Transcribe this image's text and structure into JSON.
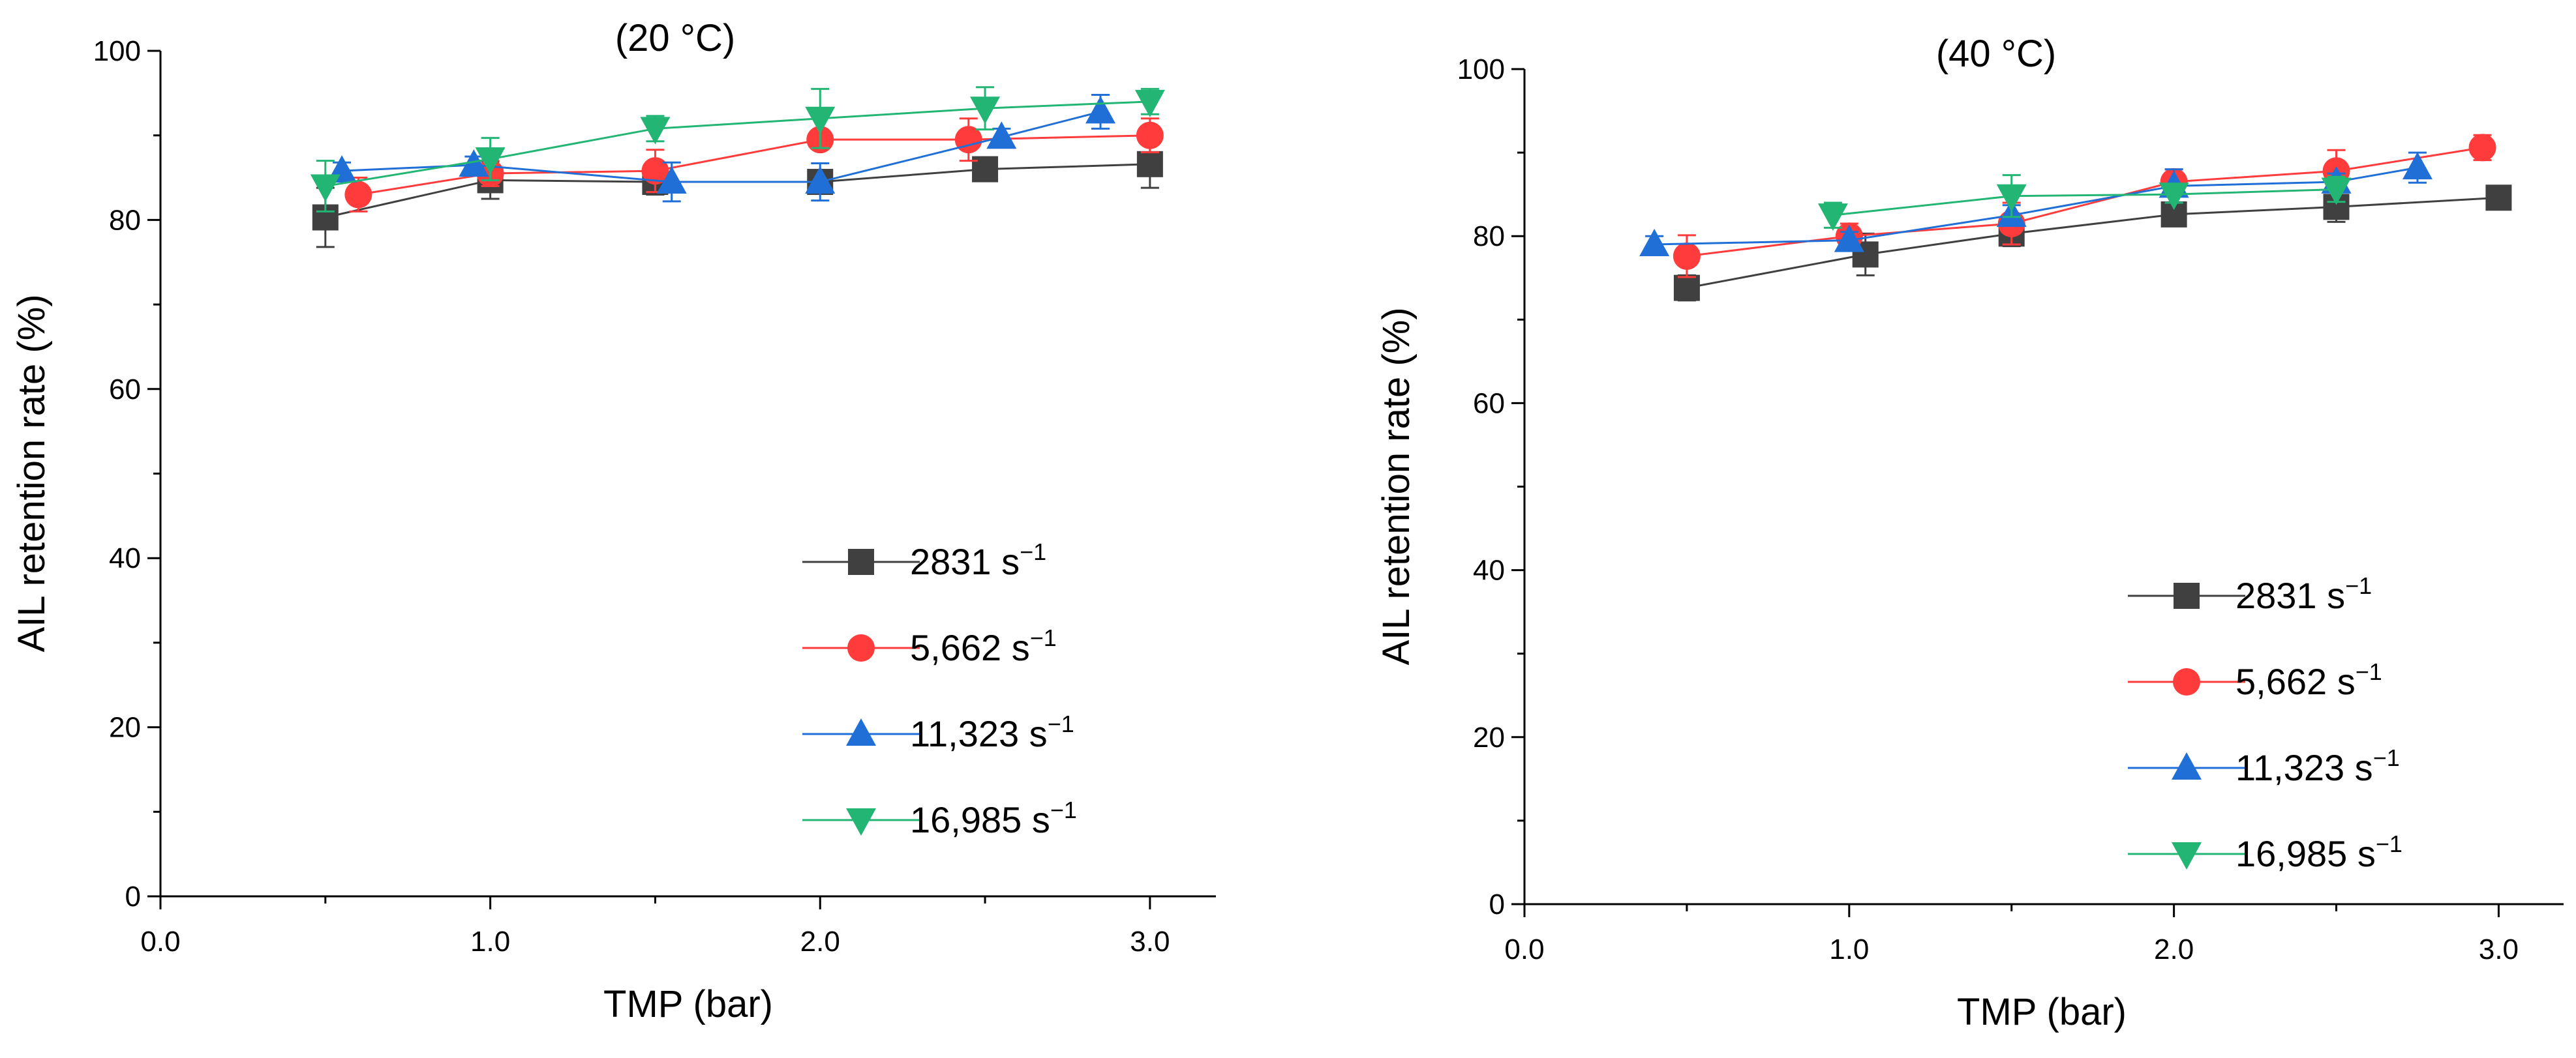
{
  "chart_data": [
    {
      "type": "line",
      "title": "(20 °C)",
      "xlabel": "TMP (bar)",
      "ylabel": "AIL retention rate (%)",
      "xlim": [
        0.0,
        3.2
      ],
      "ylim": [
        0,
        100
      ],
      "xticks": [
        0.0,
        1.0,
        2.0,
        3.0
      ],
      "xtick_labels": [
        "0.0",
        "1.0",
        "2.0",
        "3.0"
      ],
      "yticks": [
        0,
        20,
        40,
        60,
        80,
        100
      ],
      "ytick_labels": [
        "0",
        "20",
        "40",
        "60",
        "80",
        "100"
      ],
      "legend_position": "bottom-right",
      "series": [
        {
          "name": "2831 s",
          "sup": "−1",
          "marker": "square",
          "color": "#404040",
          "x": [
            0.5,
            1.0,
            1.5,
            2.0,
            2.5,
            3.0
          ],
          "y": [
            80.3,
            84.7,
            84.5,
            84.5,
            86.0,
            86.6
          ],
          "err": [
            3.5,
            2.2,
            1.5,
            1.0,
            0.8,
            2.8
          ]
        },
        {
          "name": "5,662 s",
          "sup": "−1",
          "marker": "circle",
          "color": "#FF3B3B",
          "x": [
            0.6,
            1.0,
            1.5,
            2.0,
            2.45,
            3.0
          ],
          "y": [
            83.0,
            85.5,
            85.8,
            89.5,
            89.5,
            90.0
          ],
          "err": [
            2.0,
            1.5,
            2.5,
            1.0,
            2.5,
            2.0
          ]
        },
        {
          "name": "11,323 s",
          "sup": "−1",
          "marker": "triangle-up",
          "color": "#1F6FD6",
          "x": [
            0.55,
            0.95,
            1.55,
            2.0,
            2.55,
            2.85
          ],
          "y": [
            85.8,
            86.5,
            84.5,
            84.5,
            89.8,
            92.8
          ],
          "err": [
            1.0,
            1.0,
            2.3,
            2.2,
            1.0,
            2.0
          ]
        },
        {
          "name": "16,985 s",
          "sup": "−1",
          "marker": "triangle-down",
          "color": "#22B573",
          "x": [
            0.5,
            1.0,
            1.5,
            2.0,
            2.5,
            3.0
          ],
          "y": [
            84.0,
            87.2,
            90.8,
            92.0,
            93.2,
            94.0
          ],
          "err": [
            3.0,
            2.5,
            1.5,
            3.5,
            2.5,
            1.5
          ]
        }
      ]
    },
    {
      "type": "line",
      "title": "(40 °C)",
      "xlabel": "TMP (bar)",
      "ylabel": "AIL retention rate (%)",
      "xlim": [
        0.0,
        3.2
      ],
      "ylim": [
        0,
        100
      ],
      "xticks": [
        0.0,
        1.0,
        2.0,
        3.0
      ],
      "xtick_labels": [
        "0.0",
        "1.0",
        "2.0",
        "3.0"
      ],
      "yticks": [
        0,
        20,
        40,
        60,
        80,
        100
      ],
      "ytick_labels": [
        "0",
        "20",
        "40",
        "60",
        "80",
        "100"
      ],
      "legend_position": "bottom-right",
      "series": [
        {
          "name": "2831 s",
          "sup": "−1",
          "marker": "square",
          "color": "#404040",
          "x": [
            0.5,
            1.05,
            1.5,
            2.0,
            2.5,
            3.0
          ],
          "y": [
            73.8,
            77.8,
            80.3,
            82.6,
            83.5,
            84.6
          ],
          "err": [
            1.5,
            2.5,
            1.5,
            1.0,
            1.8,
            1.0
          ]
        },
        {
          "name": "5,662 s",
          "sup": "−1",
          "marker": "circle",
          "color": "#FF3B3B",
          "x": [
            0.5,
            1.0,
            1.5,
            2.0,
            2.5,
            2.95
          ],
          "y": [
            77.6,
            80.0,
            81.5,
            86.5,
            87.8,
            90.6
          ],
          "err": [
            2.5,
            1.5,
            2.5,
            1.5,
            2.5,
            1.5
          ]
        },
        {
          "name": "11,323 s",
          "sup": "−1",
          "marker": "triangle-up",
          "color": "#1F6FD6",
          "x": [
            0.4,
            1.0,
            1.5,
            2.0,
            2.5,
            2.75
          ],
          "y": [
            79.0,
            79.5,
            82.5,
            86.0,
            86.5,
            88.2
          ],
          "err": [
            1.0,
            1.0,
            1.2,
            2.0,
            1.0,
            1.8
          ]
        },
        {
          "name": "16,985 s",
          "sup": "−1",
          "marker": "triangle-down",
          "color": "#22B573",
          "x": [
            0.95,
            1.5,
            2.0,
            2.5
          ],
          "y": [
            82.5,
            84.8,
            85.0,
            85.6
          ],
          "err": [
            1.5,
            2.5,
            1.0,
            1.5
          ]
        }
      ]
    }
  ]
}
